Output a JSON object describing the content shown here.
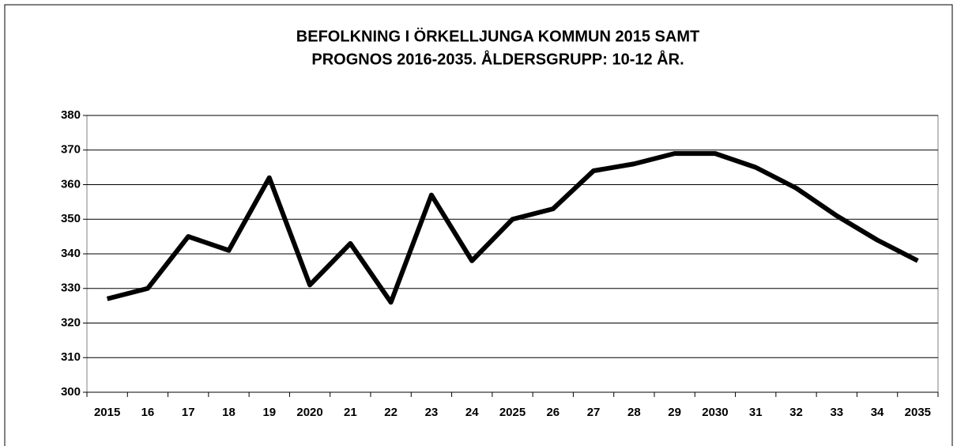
{
  "chart_data": {
    "type": "line",
    "title": [
      "BEFOLKNING I ÖRKELLJUNGA KOMMUN 2015 SAMT",
      "PROGNOS 2016-2035. ÅLDERSGRUPP: 10-12 ÅR."
    ],
    "categories": [
      "2015",
      "16",
      "17",
      "18",
      "19",
      "2020",
      "21",
      "22",
      "23",
      "24",
      "2025",
      "26",
      "27",
      "28",
      "29",
      "2030",
      "31",
      "32",
      "33",
      "34",
      "2035"
    ],
    "values": [
      327,
      330,
      345,
      341,
      362,
      331,
      343,
      326,
      357,
      338,
      350,
      353,
      364,
      366,
      369,
      369,
      365,
      359,
      351,
      344,
      338
    ],
    "color": "#000000",
    "ylim": [
      300,
      380
    ],
    "yticks": [
      300,
      310,
      320,
      330,
      340,
      350,
      360,
      370,
      380
    ],
    "grid": true
  }
}
